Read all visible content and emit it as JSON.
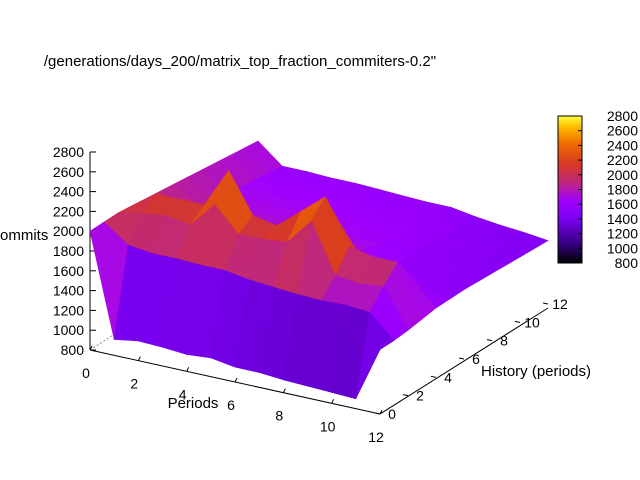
{
  "chart_data": {
    "type": "surface3d",
    "title": "/generations/days_200/matrix_top_fraction_commiters-0.2\"",
    "xlabel": "Periods",
    "ylabel": "History (periods)",
    "zlabel": "ommits",
    "x_ticks": [
      "0",
      "2",
      "4",
      "6",
      "8",
      "10",
      "12"
    ],
    "y_ticks": [
      "0",
      "2",
      "4",
      "6",
      "8",
      "10",
      "12"
    ],
    "z_ticks": [
      "800",
      "1000",
      "1200",
      "1400",
      "1600",
      "1800",
      "2000",
      "2200",
      "2400",
      "2600",
      "2800"
    ],
    "colorbar_ticks": [
      "800",
      "1000",
      "1200",
      "1400",
      "1600",
      "1800",
      "2000",
      "2200",
      "2400",
      "2600",
      "2800"
    ],
    "xlim": [
      0,
      12
    ],
    "ylim": [
      0,
      12
    ],
    "zlim": [
      800,
      2800
    ],
    "colormap": [
      "#000000",
      "#5500aa",
      "#9a00ff",
      "#c0287a",
      "#e04010",
      "#f07800",
      "#ffe000",
      "#ffff60"
    ],
    "grid": false,
    "x": [
      0,
      1,
      2,
      3,
      4,
      5,
      6,
      7,
      8,
      9,
      10,
      11,
      12
    ],
    "y": [
      0,
      1,
      2,
      3,
      4,
      5,
      6,
      7,
      8,
      9,
      10,
      11,
      12
    ],
    "z": [
      [
        2000,
        960,
        1000,
        990,
        970,
        990,
        950,
        950,
        930,
        920,
        910,
        900,
        1450
      ],
      [
        2000,
        1820,
        1790,
        1790,
        1780,
        1780,
        1740,
        1720,
        1700,
        1690,
        1700,
        1680,
        1450
      ],
      [
        2000,
        2050,
        2080,
        2040,
        2300,
        2050,
        2060,
        2080,
        2350,
        1850,
        1820,
        1850,
        1460
      ],
      [
        1980,
        2150,
        2150,
        2150,
        2550,
        2150,
        2100,
        2300,
        2500,
        2050,
        2000,
        2000,
        1480
      ],
      [
        1960,
        2000,
        1950,
        2000,
        2000,
        1900,
        1950,
        1900,
        2150,
        1800,
        1850,
        1750,
        1500
      ],
      [
        1940,
        1800,
        1820,
        1800,
        1800,
        1800,
        1780,
        1760,
        1750,
        1620,
        1600,
        1580,
        1500
      ],
      [
        1920,
        1750,
        1760,
        1740,
        1740,
        1730,
        1720,
        1700,
        1700,
        1560,
        1550,
        1540,
        1500
      ],
      [
        1900,
        1700,
        1700,
        1690,
        1690,
        1680,
        1670,
        1660,
        1650,
        1560,
        1540,
        1520,
        1490
      ],
      [
        1880,
        1680,
        1680,
        1670,
        1670,
        1660,
        1650,
        1640,
        1640,
        1560,
        1530,
        1510,
        1480
      ],
      [
        1860,
        1660,
        1660,
        1650,
        1650,
        1640,
        1630,
        1620,
        1620,
        1550,
        1520,
        1500,
        1470
      ],
      [
        1840,
        1640,
        1640,
        1630,
        1630,
        1620,
        1610,
        1600,
        1600,
        1540,
        1510,
        1490,
        1460
      ],
      [
        1820,
        1620,
        1620,
        1610,
        1610,
        1600,
        1590,
        1580,
        1580,
        1530,
        1500,
        1480,
        1450
      ],
      [
        1800,
        1600,
        1600,
        1590,
        1590,
        1580,
        1570,
        1560,
        1560,
        1520,
        1490,
        1470,
        1440
      ]
    ]
  }
}
